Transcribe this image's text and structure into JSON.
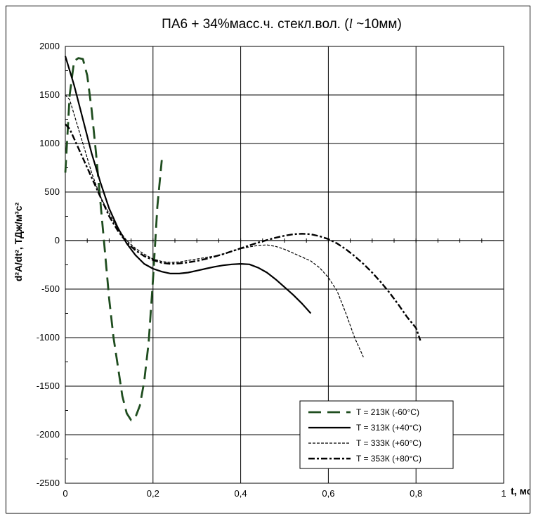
{
  "chart_data": {
    "type": "line",
    "title_main": "ПА6 + 34%масс.ч. стекл.вол. (",
    "title_symbol": "l",
    "title_rest": " ~10мм)",
    "xlabel": "t, мс",
    "ylabel": "d²A/dt², ТДж/м³с²",
    "xlim": [
      0,
      1
    ],
    "ylim": [
      -2500,
      2000
    ],
    "x_ticks": [
      "0",
      "0,2",
      "0,4",
      "0,6",
      "0,8",
      "1"
    ],
    "y_ticks": [
      "2000",
      "1500",
      "1000",
      "500",
      "0",
      "-500",
      "-1000",
      "-1500",
      "-2000",
      "-2500"
    ],
    "grid": true,
    "legend_position": "bottom-right",
    "series": [
      {
        "name": "T = 213К (-60°С)",
        "color": "#1f4d1f",
        "dash": "long-dash",
        "x": [
          0.0,
          0.01,
          0.02,
          0.03,
          0.04,
          0.05,
          0.06,
          0.07,
          0.08,
          0.09,
          0.1,
          0.11,
          0.12,
          0.13,
          0.14,
          0.15,
          0.16,
          0.17,
          0.18,
          0.19,
          0.2,
          0.21,
          0.22
        ],
        "y": [
          700,
          1500,
          1850,
          1880,
          1870,
          1700,
          1350,
          900,
          400,
          -100,
          -600,
          -1000,
          -1300,
          -1600,
          -1780,
          -1850,
          -1820,
          -1700,
          -1450,
          -1050,
          -400,
          350,
          830
        ]
      },
      {
        "name": "T = 313К (+40°С)",
        "color": "#000000",
        "dash": "solid",
        "x": [
          0.0,
          0.02,
          0.04,
          0.06,
          0.08,
          0.1,
          0.12,
          0.14,
          0.16,
          0.18,
          0.2,
          0.22,
          0.24,
          0.26,
          0.28,
          0.3,
          0.32,
          0.34,
          0.36,
          0.38,
          0.4,
          0.42,
          0.44,
          0.46,
          0.48,
          0.5,
          0.52,
          0.54,
          0.56
        ],
        "y": [
          1900,
          1600,
          1250,
          900,
          600,
          330,
          130,
          -30,
          -150,
          -240,
          -290,
          -320,
          -340,
          -340,
          -330,
          -310,
          -290,
          -270,
          -255,
          -245,
          -240,
          -245,
          -280,
          -330,
          -400,
          -480,
          -560,
          -650,
          -750
        ]
      },
      {
        "name": "T = 333К (+60°С)",
        "color": "#000000",
        "dash": "fine-dash",
        "x": [
          0.0,
          0.01,
          0.02,
          0.04,
          0.06,
          0.08,
          0.1,
          0.12,
          0.14,
          0.16,
          0.18,
          0.2,
          0.22,
          0.24,
          0.26,
          0.28,
          0.3,
          0.32,
          0.34,
          0.36,
          0.38,
          0.4,
          0.42,
          0.44,
          0.46,
          0.48,
          0.5,
          0.52,
          0.54,
          0.56,
          0.58,
          0.6,
          0.62,
          0.64,
          0.66,
          0.68
        ],
        "y": [
          1500,
          1450,
          1300,
          1000,
          700,
          450,
          280,
          120,
          0,
          -80,
          -140,
          -190,
          -215,
          -225,
          -220,
          -205,
          -190,
          -175,
          -160,
          -140,
          -110,
          -85,
          -65,
          -50,
          -45,
          -60,
          -90,
          -130,
          -170,
          -210,
          -280,
          -380,
          -520,
          -750,
          -1000,
          -1200
        ]
      },
      {
        "name": "T = 353К (+80°С)",
        "color": "#000000",
        "dash": "dash-dot",
        "x": [
          0.0,
          0.01,
          0.02,
          0.04,
          0.06,
          0.08,
          0.1,
          0.12,
          0.14,
          0.16,
          0.18,
          0.2,
          0.22,
          0.24,
          0.26,
          0.28,
          0.3,
          0.32,
          0.34,
          0.36,
          0.38,
          0.4,
          0.42,
          0.44,
          0.46,
          0.48,
          0.5,
          0.52,
          0.54,
          0.56,
          0.58,
          0.6,
          0.62,
          0.64,
          0.66,
          0.68,
          0.7,
          0.72,
          0.74,
          0.76,
          0.78,
          0.8,
          0.81
        ],
        "y": [
          1200,
          1150,
          1050,
          850,
          650,
          450,
          250,
          100,
          -20,
          -100,
          -160,
          -200,
          -230,
          -240,
          -235,
          -225,
          -210,
          -190,
          -165,
          -140,
          -110,
          -80,
          -50,
          -20,
          5,
          30,
          50,
          65,
          70,
          65,
          45,
          15,
          -30,
          -90,
          -160,
          -240,
          -330,
          -430,
          -540,
          -660,
          -790,
          -900,
          -1030
        ]
      }
    ]
  }
}
